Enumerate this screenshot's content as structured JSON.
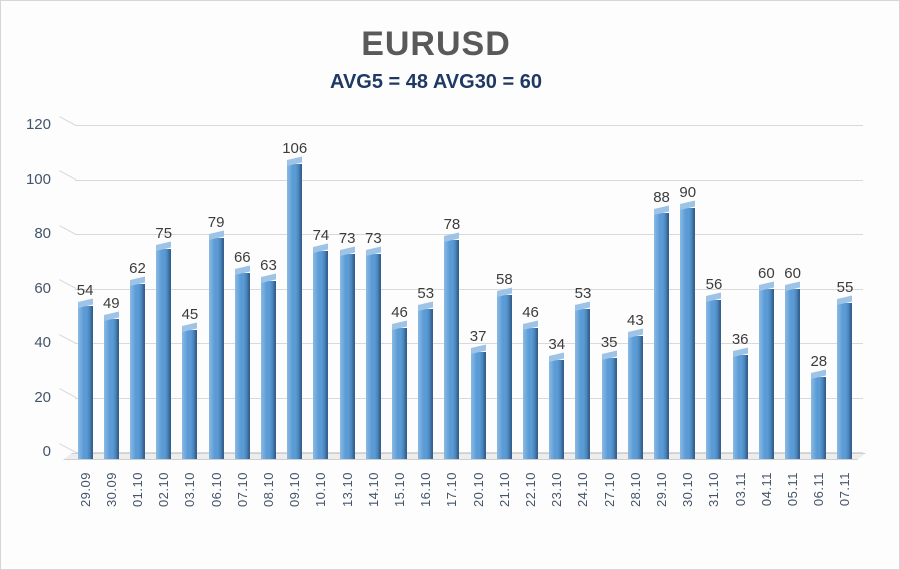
{
  "colors": {
    "title": "#595959",
    "subtitle": "#1F3864",
    "bar_face": "#5B9BD5",
    "bar_light": "#8ABAE4",
    "bar_dark": "#33608F",
    "bar_cap": "#9DC3E6",
    "gridline": "#D9D9D9",
    "axis_label": "#44546A",
    "value_label": "#3C3C3C",
    "floor": "#EDEDED",
    "floor_edge": "#CFCFCF"
  },
  "chart_data": {
    "type": "bar",
    "title": "EURUSD",
    "subtitle": "AVG5 = 48 AVG30 = 60",
    "avg5": 48,
    "avg30": 60,
    "categories": [
      "29.09",
      "30.09",
      "01.10",
      "02.10",
      "03.10",
      "06.10",
      "07.10",
      "08.10",
      "09.10",
      "10.10",
      "13.10",
      "14.10",
      "15.10",
      "16.10",
      "17.10",
      "20.10",
      "21.10",
      "22.10",
      "23.10",
      "24.10",
      "27.10",
      "28.10",
      "29.10",
      "30.10",
      "31.10",
      "03.11",
      "04.11",
      "05.11",
      "06.11",
      "07.11"
    ],
    "values": [
      54,
      49,
      62,
      75,
      45,
      79,
      66,
      63,
      106,
      74,
      73,
      73,
      46,
      53,
      78,
      37,
      58,
      46,
      34,
      53,
      35,
      43,
      88,
      90,
      56,
      36,
      60,
      60,
      28,
      55
    ],
    "xlabel": "",
    "ylabel": "",
    "ylim": [
      0,
      120
    ],
    "yticks": [
      0,
      20,
      40,
      60,
      80,
      100,
      120
    ],
    "grid": true,
    "legend": "none",
    "style": "3d-column"
  }
}
